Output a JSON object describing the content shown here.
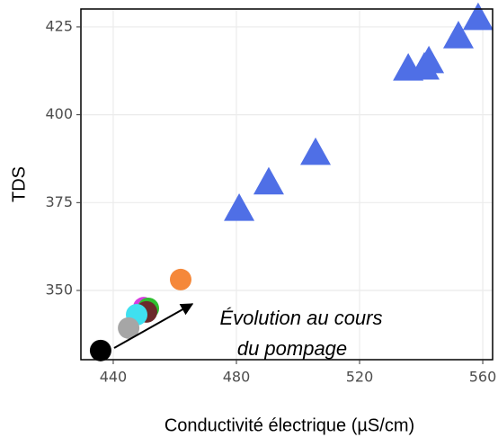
{
  "chart_data": {
    "type": "scatter",
    "xlabel": "Conductivité électrique (µS/cm)",
    "ylabel": "TDS",
    "annotation": [
      "Évolution au cours",
      "du pompage"
    ],
    "x": [
      558.5,
      552.1,
      542.5,
      535.8,
      541.0,
      505.7,
      490.5,
      480.9,
      461.9,
      449.9,
      451.4,
      450.8,
      447.6,
      445.0,
      435.9
    ],
    "y": [
      427.6,
      422.4,
      415.3,
      413.2,
      413.5,
      389.2,
      380.8,
      373.3,
      353.1,
      345.1,
      344.9,
      343.9,
      343.1,
      339.3,
      332.9
    ],
    "colors": [
      "#4f6fe6",
      "#4f6fe6",
      "#4f6fe6",
      "#4f6fe6",
      "#4f6fe6",
      "#4f6fe6",
      "#4f6fe6",
      "#4f6fe6",
      "#f5883a",
      "#d63ce0",
      "#2fbf2f",
      "#6b2a2a",
      "#3fe0f0",
      "#a6a6a6",
      "#000000"
    ],
    "markers": [
      "triangle",
      "triangle",
      "triangle",
      "triangle",
      "triangle",
      "triangle",
      "triangle",
      "triangle",
      "circle",
      "circle",
      "circle",
      "circle",
      "circle",
      "circle",
      "circle"
    ],
    "xlim": [
      429.5,
      563.2
    ],
    "ylim": [
      330.3,
      430.1
    ],
    "xticks": [
      440,
      480,
      520,
      560
    ],
    "yticks": [
      350,
      375,
      400,
      425
    ],
    "grid": true
  }
}
